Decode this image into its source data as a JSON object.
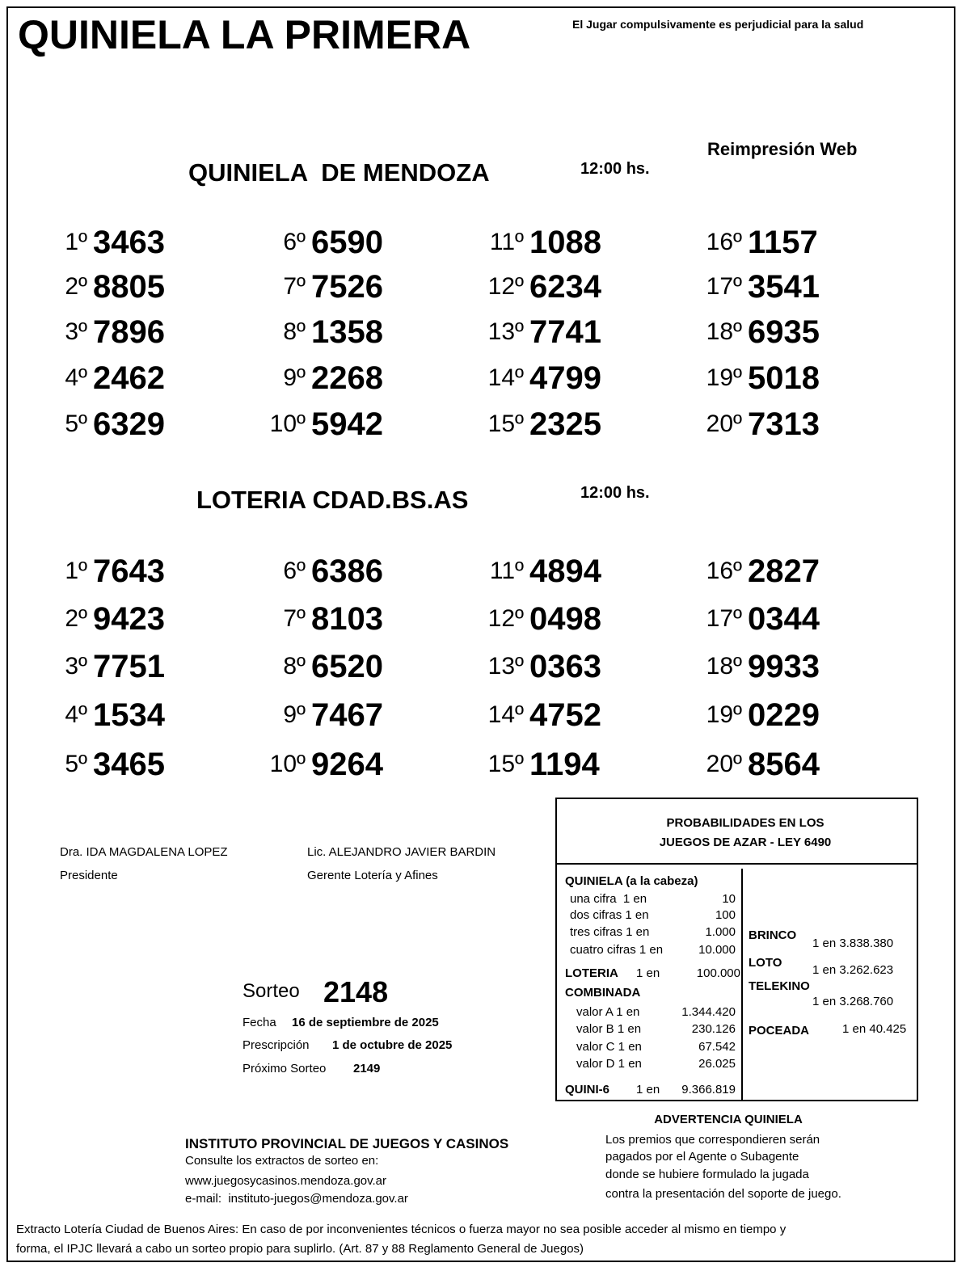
{
  "header": {
    "title": "QUINIELA LA PRIMERA",
    "warning": "El Jugar compulsivamente es perjudicial para la salud",
    "reprint": "Reimpresión Web"
  },
  "draws": [
    {
      "name": "QUINIELA  DE MENDOZA",
      "time": "12:00 hs.",
      "results": [
        {
          "pos": "1º",
          "number": "3463"
        },
        {
          "pos": "2º",
          "number": "8805"
        },
        {
          "pos": "3º",
          "number": "7896"
        },
        {
          "pos": "4º",
          "number": "2462"
        },
        {
          "pos": "5º",
          "number": "6329"
        },
        {
          "pos": "6º",
          "number": "6590"
        },
        {
          "pos": "7º",
          "number": "7526"
        },
        {
          "pos": "8º",
          "number": "1358"
        },
        {
          "pos": "9º",
          "number": "2268"
        },
        {
          "pos": "10º",
          "number": "5942"
        },
        {
          "pos": "11º",
          "number": "1088"
        },
        {
          "pos": "12º",
          "number": "6234"
        },
        {
          "pos": "13º",
          "number": "7741"
        },
        {
          "pos": "14º",
          "number": "4799"
        },
        {
          "pos": "15º",
          "number": "2325"
        },
        {
          "pos": "16º",
          "number": "1157"
        },
        {
          "pos": "17º",
          "number": "3541"
        },
        {
          "pos": "18º",
          "number": "6935"
        },
        {
          "pos": "19º",
          "number": "5018"
        },
        {
          "pos": "20º",
          "number": "7313"
        }
      ]
    },
    {
      "name": "LOTERIA CDAD.BS.AS",
      "time": "12:00 hs.",
      "results": [
        {
          "pos": "1º",
          "number": "7643"
        },
        {
          "pos": "2º",
          "number": "9423"
        },
        {
          "pos": "3º",
          "number": "7751"
        },
        {
          "pos": "4º",
          "number": "1534"
        },
        {
          "pos": "5º",
          "number": "3465"
        },
        {
          "pos": "6º",
          "number": "6386"
        },
        {
          "pos": "7º",
          "number": "8103"
        },
        {
          "pos": "8º",
          "number": "6520"
        },
        {
          "pos": "9º",
          "number": "7467"
        },
        {
          "pos": "10º",
          "number": "9264"
        },
        {
          "pos": "11º",
          "number": "4894"
        },
        {
          "pos": "12º",
          "number": "0498"
        },
        {
          "pos": "13º",
          "number": "0363"
        },
        {
          "pos": "14º",
          "number": "4752"
        },
        {
          "pos": "15º",
          "number": "1194"
        },
        {
          "pos": "16º",
          "number": "2827"
        },
        {
          "pos": "17º",
          "number": "0344"
        },
        {
          "pos": "18º",
          "number": "9933"
        },
        {
          "pos": "19º",
          "number": "0229"
        },
        {
          "pos": "20º",
          "number": "8564"
        }
      ]
    }
  ],
  "signatures": [
    {
      "name": "Dra. IDA MAGDALENA LOPEZ",
      "role": "Presidente"
    },
    {
      "name": "Lic. ALEJANDRO JAVIER BARDIN",
      "role": "Gerente Lotería y Afines"
    }
  ],
  "sorteo": {
    "label": "Sorteo",
    "number": "2148",
    "fecha_label": "Fecha",
    "fecha": "16 de septiembre de 2025",
    "prescripcion_label": "Prescripción",
    "prescripcion": "1 de octubre de 2025",
    "proximo_label": "Próximo Sorteo",
    "proximo": "2149"
  },
  "probabilities": {
    "title": [
      "PROBABILIDADES EN LOS",
      "JUEGOS DE AZAR - LEY 6490"
    ],
    "quiniela_title": "QUINIELA (a la cabeza)",
    "quiniela": [
      {
        "label": "una cifra  1 en",
        "odds": "10"
      },
      {
        "label": "dos cifras 1 en",
        "odds": "100"
      },
      {
        "label": "tres cifras 1 en",
        "odds": "1.000"
      },
      {
        "label": "cuatro cifras 1 en",
        "odds": "10.000"
      }
    ],
    "loteria": {
      "label": "LOTERIA",
      "per": "1 en",
      "odds": "100.000"
    },
    "combinada_title": "COMBINADA",
    "combinada": [
      {
        "label": "valor A 1 en",
        "odds": "1.344.420"
      },
      {
        "label": "valor B 1 en",
        "odds": "230.126"
      },
      {
        "label": "valor C 1 en",
        "odds": "67.542"
      },
      {
        "label": "valor D 1 en",
        "odds": "26.025"
      }
    ],
    "quini6": {
      "label": "QUINI-6",
      "per": "1 en",
      "odds": "9.366.819"
    },
    "others": [
      {
        "label": "BRINCO",
        "odds": "1 en 3.838.380"
      },
      {
        "label": "LOTO",
        "odds": "1 en 3.262.623"
      },
      {
        "label": "TELEKINO",
        "odds": "1 en 3.268.760"
      },
      {
        "label": "POCEADA",
        "odds": "1 en 40.425"
      }
    ]
  },
  "institute": {
    "title": "INSTITUTO PROVINCIAL DE JUEGOS Y CASINOS",
    "lines": [
      "Consulte los extractos de sorteo en:",
      "www.juegosycasinos.mendoza.gov.ar",
      "e-mail:  instituto-juegos@mendoza.gov.ar"
    ]
  },
  "warning_box": {
    "title": "ADVERTENCIA QUINIELA",
    "lines": [
      "Los premios que correspondieren serán",
      "pagados por el Agente o Subagente",
      "donde se hubiere formulado la jugada",
      "contra la presentación del soporte de juego."
    ]
  },
  "footer": [
    "Extracto Lotería Ciudad de Buenos Aires: En caso de por inconvenientes técnicos o fuerza mayor no sea posible acceder al mismo en tiempo y",
    "forma, el IPJC llevará a cabo un sorteo propio para suplirlo. (Art. 87 y 88 Reglamento General de Juegos)"
  ]
}
